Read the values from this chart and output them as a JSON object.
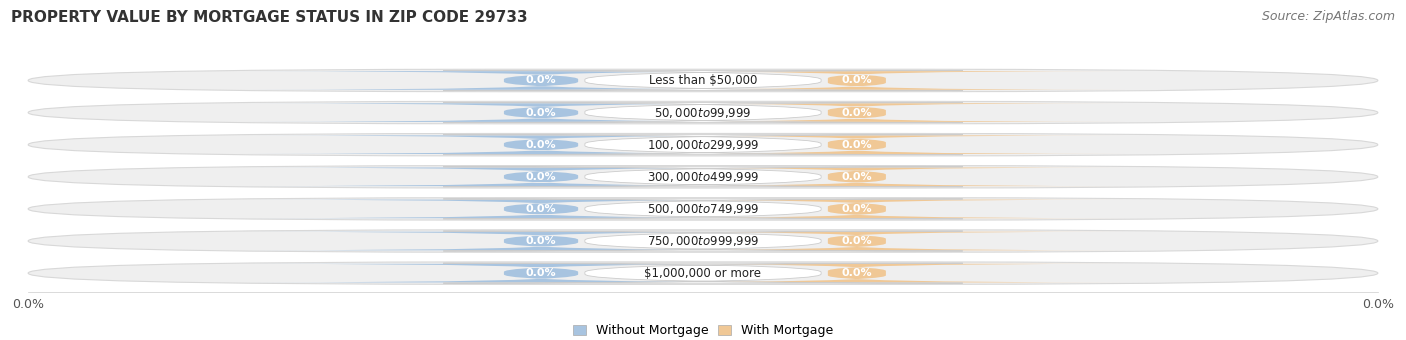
{
  "title": "PROPERTY VALUE BY MORTGAGE STATUS IN ZIP CODE 29733",
  "source": "Source: ZipAtlas.com",
  "categories": [
    "Less than $50,000",
    "$50,000 to $99,999",
    "$100,000 to $299,999",
    "$300,000 to $499,999",
    "$500,000 to $749,999",
    "$750,000 to $999,999",
    "$1,000,000 or more"
  ],
  "without_mortgage": [
    0.0,
    0.0,
    0.0,
    0.0,
    0.0,
    0.0,
    0.0
  ],
  "with_mortgage": [
    0.0,
    0.0,
    0.0,
    0.0,
    0.0,
    0.0,
    0.0
  ],
  "without_mortgage_color": "#a8c4e0",
  "with_mortgage_color": "#f0c896",
  "bar_bg_color": "#efefef",
  "bar_bg_edge_color": "#d8d8d8",
  "title_fontsize": 11,
  "source_fontsize": 9,
  "legend_without": "Without Mortgage",
  "legend_with": "With Mortgage",
  "x_tick_left": "0.0%",
  "x_tick_right": "0.0%"
}
